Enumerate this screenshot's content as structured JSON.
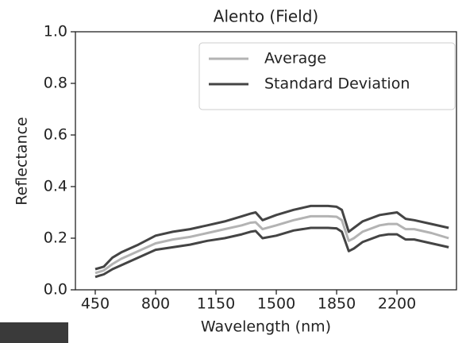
{
  "chart_data": {
    "type": "line",
    "title": "Alento (Field)",
    "x_label": "Wavelength (nm)",
    "y_label": "Reflectance",
    "x": [
      450,
      500,
      550,
      600,
      700,
      800,
      900,
      1000,
      1100,
      1200,
      1300,
      1350,
      1380,
      1420,
      1500,
      1600,
      1700,
      1800,
      1850,
      1880,
      1920,
      1950,
      2000,
      2100,
      2150,
      2200,
      2250,
      2300,
      2400,
      2500
    ],
    "series": [
      {
        "name": "Average",
        "color": "#b3b3b3",
        "values": [
          0.065,
          0.075,
          0.1,
          0.12,
          0.15,
          0.18,
          0.195,
          0.205,
          0.22,
          0.235,
          0.25,
          0.26,
          0.262,
          0.235,
          0.25,
          0.27,
          0.285,
          0.285,
          0.283,
          0.27,
          0.19,
          0.2,
          0.225,
          0.25,
          0.255,
          0.255,
          0.235,
          0.235,
          0.22,
          0.2
        ]
      },
      {
        "name": "Standard Deviation",
        "color": "#444444",
        "values": [
          0.08,
          0.09,
          0.125,
          0.145,
          0.175,
          0.21,
          0.225,
          0.235,
          0.25,
          0.265,
          0.285,
          0.295,
          0.3,
          0.27,
          0.29,
          0.31,
          0.325,
          0.325,
          0.322,
          0.31,
          0.225,
          0.24,
          0.265,
          0.29,
          0.295,
          0.3,
          0.275,
          0.27,
          0.255,
          0.24
        ]
      },
      {
        "color": "#444444",
        "values": [
          0.05,
          0.06,
          0.08,
          0.095,
          0.125,
          0.155,
          0.165,
          0.175,
          0.19,
          0.2,
          0.215,
          0.225,
          0.228,
          0.2,
          0.21,
          0.23,
          0.24,
          0.24,
          0.238,
          0.225,
          0.15,
          0.16,
          0.185,
          0.21,
          0.215,
          0.215,
          0.195,
          0.195,
          0.18,
          0.165
        ]
      }
    ],
    "xlim": [
      335,
      2545
    ],
    "ylim": [
      0,
      1
    ],
    "xticks": [
      450,
      800,
      1150,
      1500,
      1850,
      2200
    ],
    "yticks": [
      {
        "value": 0,
        "label": "0.0"
      },
      0.2,
      0.4,
      0.6,
      0.8,
      {
        "value": 1,
        "label": "1.0"
      }
    ],
    "legend": "upper right",
    "grid": false
  }
}
